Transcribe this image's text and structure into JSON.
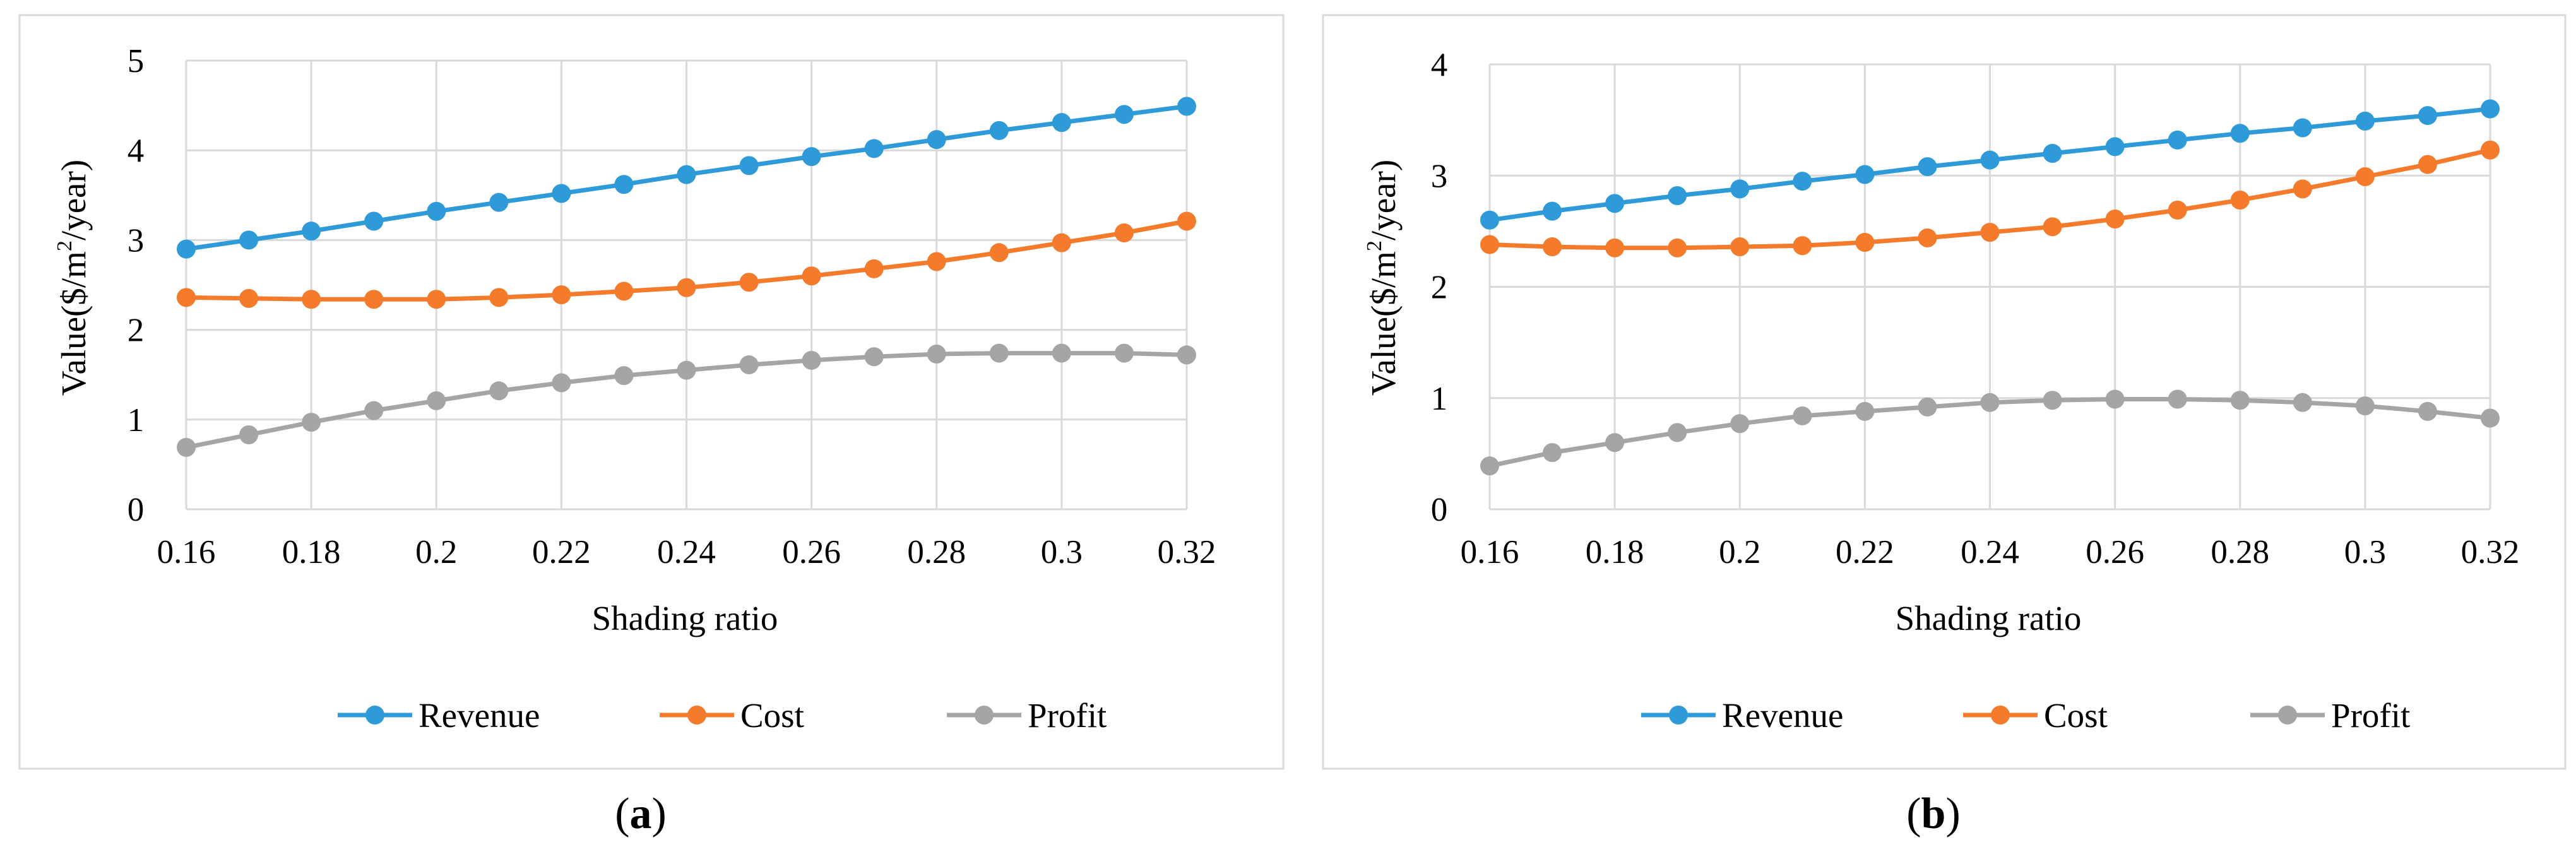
{
  "chart_data": [
    {
      "type": "line",
      "panel_label": "a",
      "title": "",
      "xlabel": "Shading ratio",
      "ylabel": "Value($/m²/year)",
      "ylabel_parts": {
        "before": "Value($/m",
        "sup": "2",
        "after": "/year)"
      },
      "x": [
        0.16,
        0.17,
        0.18,
        0.19,
        0.2,
        0.21,
        0.22,
        0.23,
        0.24,
        0.25,
        0.26,
        0.27,
        0.28,
        0.29,
        0.3,
        0.31,
        0.32
      ],
      "x_ticks": [
        0.16,
        0.18,
        0.2,
        0.22,
        0.24,
        0.26,
        0.28,
        0.3,
        0.32
      ],
      "x_tick_labels": [
        "0.16",
        "0.18",
        "0.2",
        "0.22",
        "0.24",
        "0.26",
        "0.28",
        "0.3",
        "0.32"
      ],
      "y_ticks": [
        0,
        1,
        2,
        3,
        4,
        5
      ],
      "y_tick_labels": [
        "0",
        "1",
        "2",
        "3",
        "4",
        "5"
      ],
      "xlim": [
        0.16,
        0.32
      ],
      "ylim": [
        0,
        5
      ],
      "grid": true,
      "legend_position": "bottom",
      "series": [
        {
          "name": "Revenue",
          "color": "#2e9ad8",
          "values": [
            2.9,
            3.0,
            3.1,
            3.21,
            3.32,
            3.42,
            3.52,
            3.62,
            3.73,
            3.83,
            3.93,
            4.02,
            4.12,
            4.22,
            4.31,
            4.4,
            4.49
          ]
        },
        {
          "name": "Cost",
          "color": "#f47b2b",
          "values": [
            2.36,
            2.35,
            2.34,
            2.34,
            2.34,
            2.36,
            2.39,
            2.43,
            2.47,
            2.53,
            2.6,
            2.68,
            2.76,
            2.86,
            2.97,
            3.08,
            3.21
          ]
        },
        {
          "name": "Profit",
          "color": "#a5a5a5",
          "values": [
            0.69,
            0.83,
            0.97,
            1.1,
            1.21,
            1.32,
            1.41,
            1.49,
            1.55,
            1.61,
            1.66,
            1.7,
            1.73,
            1.74,
            1.74,
            1.74,
            1.72
          ]
        }
      ]
    },
    {
      "type": "line",
      "panel_label": "b",
      "title": "",
      "xlabel": "Shading ratio",
      "ylabel": "Value($/m²/year)",
      "ylabel_parts": {
        "before": "Value($/m",
        "sup": "2",
        "after": "/year)"
      },
      "x": [
        0.16,
        0.17,
        0.18,
        0.19,
        0.2,
        0.21,
        0.22,
        0.23,
        0.24,
        0.25,
        0.26,
        0.27,
        0.28,
        0.29,
        0.3,
        0.31,
        0.32
      ],
      "x_ticks": [
        0.16,
        0.18,
        0.2,
        0.22,
        0.24,
        0.26,
        0.28,
        0.3,
        0.32
      ],
      "x_tick_labels": [
        "0.16",
        "0.18",
        "0.2",
        "0.22",
        "0.24",
        "0.26",
        "0.28",
        "0.3",
        "0.32"
      ],
      "y_ticks": [
        0,
        1,
        2,
        3,
        4
      ],
      "y_tick_labels": [
        "0",
        "1",
        "2",
        "3",
        "4"
      ],
      "xlim": [
        0.16,
        0.32
      ],
      "ylim": [
        0,
        4
      ],
      "grid": true,
      "legend_position": "bottom",
      "series": [
        {
          "name": "Revenue",
          "color": "#2e9ad8",
          "values": [
            2.6,
            2.68,
            2.75,
            2.82,
            2.88,
            2.95,
            3.01,
            3.08,
            3.14,
            3.2,
            3.26,
            3.32,
            3.38,
            3.43,
            3.49,
            3.54,
            3.6
          ]
        },
        {
          "name": "Cost",
          "color": "#f47b2b",
          "values": [
            2.38,
            2.36,
            2.35,
            2.35,
            2.36,
            2.37,
            2.4,
            2.44,
            2.49,
            2.54,
            2.61,
            2.69,
            2.78,
            2.88,
            2.99,
            3.1,
            3.23
          ]
        },
        {
          "name": "Profit",
          "color": "#a5a5a5",
          "values": [
            0.39,
            0.51,
            0.6,
            0.69,
            0.77,
            0.84,
            0.88,
            0.92,
            0.96,
            0.98,
            0.99,
            0.99,
            0.98,
            0.96,
            0.93,
            0.88,
            0.82
          ]
        }
      ]
    }
  ]
}
